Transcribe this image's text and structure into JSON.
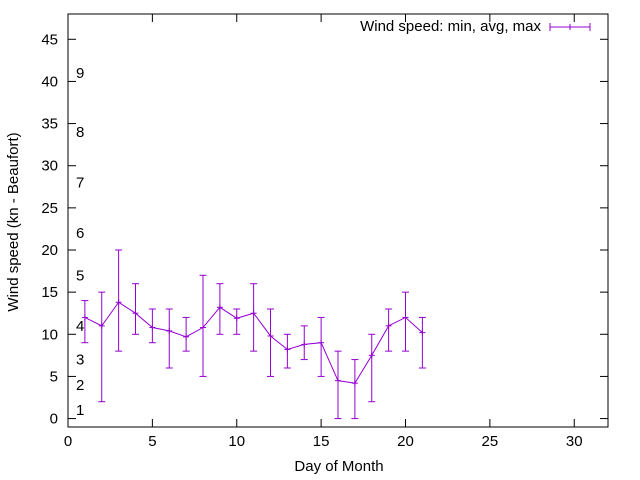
{
  "chart_data": {
    "type": "line",
    "xlabel": "Day of Month",
    "ylabel": "Wind speed (kn - Beaufort)",
    "xlim": [
      0,
      32
    ],
    "ylim": [
      -1,
      48
    ],
    "xticks": [
      0,
      5,
      10,
      15,
      20,
      25,
      30
    ],
    "yticks": [
      0,
      5,
      10,
      15,
      20,
      25,
      30,
      35,
      40,
      45
    ],
    "grid": false,
    "legend_position": "top-right",
    "beaufort_labels": [
      {
        "label": "1",
        "y": 1
      },
      {
        "label": "2",
        "y": 4
      },
      {
        "label": "3",
        "y": 7
      },
      {
        "label": "4",
        "y": 11
      },
      {
        "label": "5",
        "y": 17
      },
      {
        "label": "6",
        "y": 22
      },
      {
        "label": "7",
        "y": 28
      },
      {
        "label": "8",
        "y": 34
      },
      {
        "label": "9",
        "y": 41
      }
    ],
    "series": [
      {
        "name": "Wind speed: min, avg, max",
        "color": "#9400d3",
        "x": [
          1,
          2,
          3,
          4,
          5,
          6,
          7,
          8,
          9,
          10,
          11,
          12,
          13,
          14,
          15,
          16,
          17,
          18,
          19,
          20,
          21
        ],
        "avg": [
          12,
          11,
          13.8,
          12.5,
          10.8,
          10.4,
          9.7,
          10.8,
          13.2,
          11.9,
          12.5,
          9.8,
          8.2,
          8.8,
          9.0,
          4.5,
          4.2,
          7.5,
          11.0,
          12.0,
          10.2
        ],
        "min": [
          9,
          2,
          8,
          10,
          9,
          6,
          8,
          5,
          10,
          10,
          8,
          5,
          6,
          7,
          5,
          0,
          0,
          2,
          8,
          8,
          6
        ],
        "max": [
          14,
          15,
          20,
          16,
          13,
          13,
          12,
          17,
          16,
          13,
          16,
          13,
          10,
          11,
          12,
          8,
          7,
          10,
          13,
          15,
          12
        ]
      }
    ]
  }
}
